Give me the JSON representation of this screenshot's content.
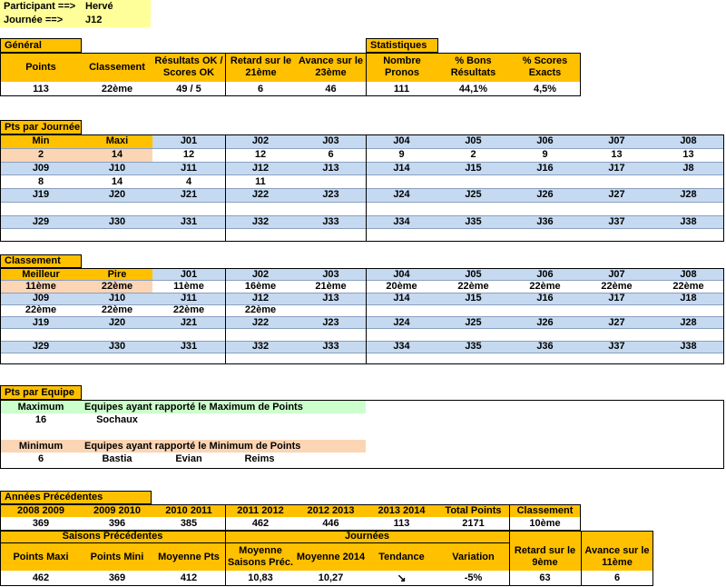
{
  "header": {
    "participant_label": "Participant ==>",
    "participant_value": "Hervé",
    "journee_label": "Journée ==>",
    "journee_value": "J12"
  },
  "general": {
    "title": "Général",
    "headers": [
      "Points",
      "Classement",
      "Résultats OK / Scores OK",
      "Retard sur le 21ème",
      "Avance sur le 23ème"
    ],
    "values": [
      "113",
      "22ème",
      "49  /  5",
      "6",
      "46"
    ]
  },
  "stats": {
    "title": "Statistiques",
    "headers": [
      "Nombre Pronos",
      "% Bons Résultats",
      "% Scores Exacts"
    ],
    "values": [
      "111",
      "44,1%",
      "4,5%"
    ]
  },
  "pts_journee": {
    "title": "Pts par Journée",
    "rows": [
      [
        "Min",
        "Maxi",
        "J01",
        "J02",
        "J03",
        "J04",
        "J05",
        "J06",
        "J07",
        "J08"
      ],
      [
        "2",
        "14",
        "12",
        "12",
        "6",
        "9",
        "2",
        "9",
        "13",
        "13"
      ],
      [
        "J09",
        "J10",
        "J11",
        "J12",
        "J13",
        "J14",
        "J15",
        "J16",
        "J17",
        "J8"
      ],
      [
        "8",
        "14",
        "4",
        "11",
        "",
        "",
        "",
        "",
        "",
        ""
      ],
      [
        "J19",
        "J20",
        "J21",
        "J22",
        "J23",
        "J24",
        "J25",
        "J26",
        "J27",
        "J28"
      ],
      [
        "",
        "",
        "",
        "",
        "",
        "",
        "",
        "",
        "",
        ""
      ],
      [
        "J29",
        "J30",
        "J31",
        "J32",
        "J33",
        "J34",
        "J35",
        "J36",
        "J37",
        "J38"
      ],
      [
        "",
        "",
        "",
        "",
        "",
        "",
        "",
        "",
        "",
        ""
      ]
    ]
  },
  "classement": {
    "title": "Classement",
    "rows": [
      [
        "Meilleur",
        "Pire",
        "J01",
        "J02",
        "J03",
        "J04",
        "J05",
        "J06",
        "J07",
        "J08"
      ],
      [
        "11ème",
        "22ème",
        "11ème",
        "16ème",
        "21ème",
        "20ème",
        "22ème",
        "22ème",
        "22ème",
        "22ème"
      ],
      [
        "J09",
        "J10",
        "J11",
        "J12",
        "J13",
        "J14",
        "J15",
        "J16",
        "J17",
        "J18"
      ],
      [
        "22ème",
        "22ème",
        "22ème",
        "22ème",
        "",
        "",
        "",
        "",
        "",
        ""
      ],
      [
        "J19",
        "J20",
        "J21",
        "J22",
        "J23",
        "J24",
        "J25",
        "J26",
        "J27",
        "J28"
      ],
      [
        "",
        "",
        "",
        "",
        "",
        "",
        "",
        "",
        "",
        ""
      ],
      [
        "J29",
        "J30",
        "J31",
        "J32",
        "J33",
        "J34",
        "J35",
        "J36",
        "J37",
        "J38"
      ],
      [
        "",
        "",
        "",
        "",
        "",
        "",
        "",
        "",
        "",
        ""
      ]
    ]
  },
  "equipe": {
    "title": "Pts par Equipe",
    "max_label": "Maximum",
    "max_desc": "Equipes ayant rapporté le Maximum de Points",
    "max_value": "16",
    "max_teams": [
      "Sochaux"
    ],
    "min_label": "Minimum",
    "min_desc": "Equipes ayant rapporté le Minimum de Points",
    "min_value": "6",
    "min_teams": [
      "Bastia",
      "Evian",
      "Reims"
    ]
  },
  "annees": {
    "title": "Années Précédentes",
    "headers": [
      "2008  2009",
      "2009  2010",
      "2010  2011",
      "2011  2012",
      "2012  2013",
      "2013  2014",
      "Total Points",
      "Classement"
    ],
    "values": [
      "369",
      "396",
      "385",
      "462",
      "446",
      "113",
      "2171",
      "10ème"
    ],
    "saisons_title": "Saisons Précédentes",
    "journees_title": "Journées",
    "bottom_headers": [
      "Points Maxi",
      "Points Mini",
      "Moyenne Pts",
      "Moyenne Saisons Préc.",
      "Moyenne 2014",
      "Tendance",
      "Variation",
      "Retard sur le 9ème",
      "Avance sur le 11ème"
    ],
    "bottom_values": [
      "462",
      "369",
      "412",
      "10,83",
      "10,27",
      "↘",
      "-5%",
      "63",
      "6"
    ]
  },
  "colors": {
    "header_yellow": "#ffc000",
    "label_yellow": "#ffff99",
    "row_blue": "#c5d9f1",
    "salmon": "#fcd5b4",
    "green": "#ccffcc"
  }
}
